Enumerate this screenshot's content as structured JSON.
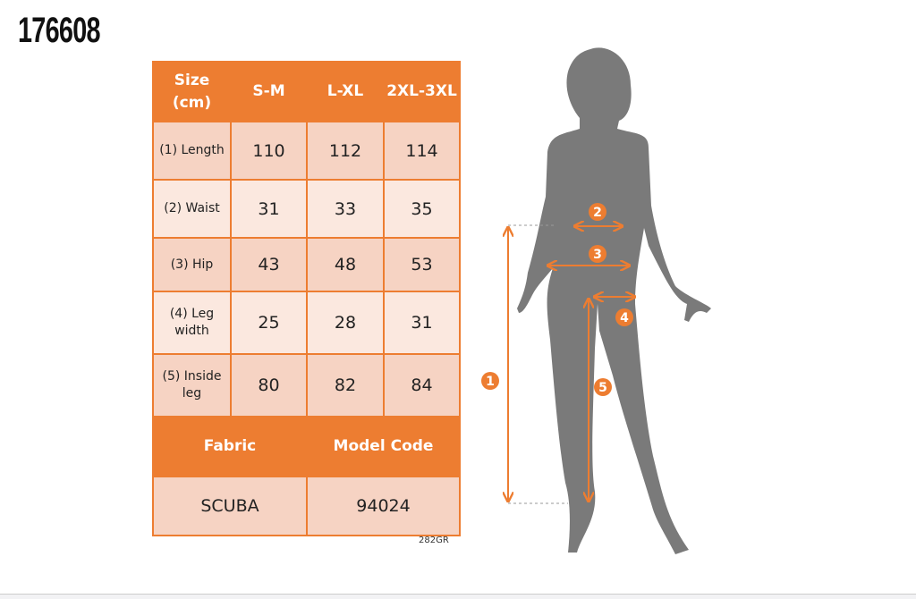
{
  "product_code": "176608",
  "table": {
    "header": [
      "Size (cm)",
      "S-M",
      "L-XL",
      "2XL-3XL"
    ],
    "rows": [
      {
        "label": "(1) Length",
        "values": [
          "110",
          "112",
          "114"
        ]
      },
      {
        "label": "(2) Waist",
        "values": [
          "31",
          "33",
          "35"
        ]
      },
      {
        "label": "(3) Hip",
        "values": [
          "43",
          "48",
          "53"
        ]
      },
      {
        "label": "(4) Leg width",
        "values": [
          "25",
          "28",
          "31"
        ]
      },
      {
        "label": "(5) Inside leg",
        "values": [
          "80",
          "82",
          "84"
        ]
      }
    ],
    "fabric_label": "Fabric",
    "model_code_label": "Model Code",
    "fabric": "SCUBA",
    "model_code": "94024"
  },
  "footnote": "282GR",
  "figure": {
    "markers": [
      "1",
      "2",
      "3",
      "4",
      "5"
    ]
  },
  "colors": {
    "accent": "#ED7D31",
    "silhouette": "#7a7a7a"
  }
}
